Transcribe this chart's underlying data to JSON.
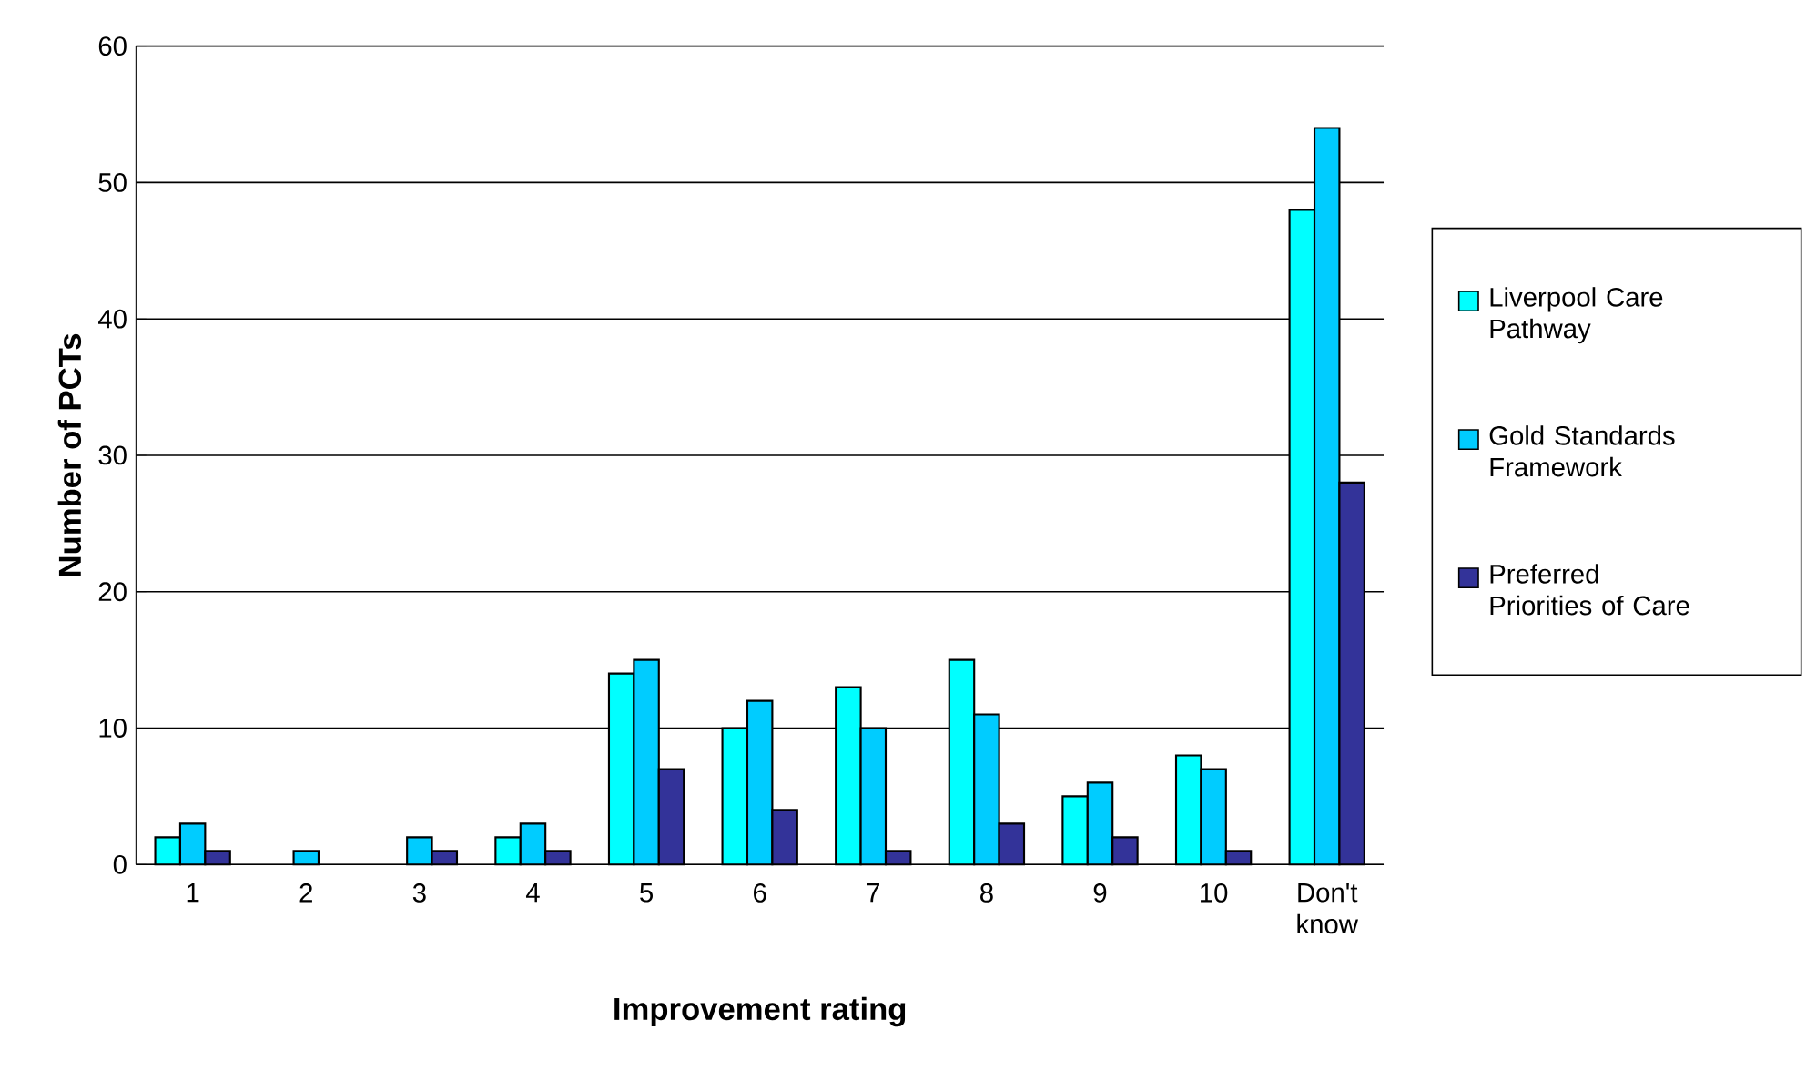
{
  "chart_data": {
    "type": "bar",
    "xlabel": "Improvement rating",
    "ylabel": "Number of PCTs",
    "categories": [
      "1",
      "2",
      "3",
      "4",
      "5",
      "6",
      "7",
      "8",
      "9",
      "10",
      "Don't know"
    ],
    "series": [
      {
        "name": "Liverpool Care Pathway",
        "color": "#00ffff",
        "values": [
          2,
          0,
          0,
          2,
          14,
          10,
          13,
          15,
          5,
          8,
          48
        ]
      },
      {
        "name": "Gold Standards Framework",
        "color": "#00ccff",
        "values": [
          3,
          1,
          2,
          3,
          15,
          12,
          10,
          11,
          6,
          7,
          54
        ]
      },
      {
        "name": "Preferred Priorities of Care",
        "color": "#333399",
        "values": [
          1,
          0,
          1,
          1,
          7,
          4,
          1,
          3,
          2,
          1,
          28
        ]
      }
    ],
    "ylim": [
      0,
      60
    ],
    "yticks": [
      0,
      10,
      20,
      30,
      40,
      50,
      60
    ],
    "grid": "y",
    "legend": "right"
  }
}
